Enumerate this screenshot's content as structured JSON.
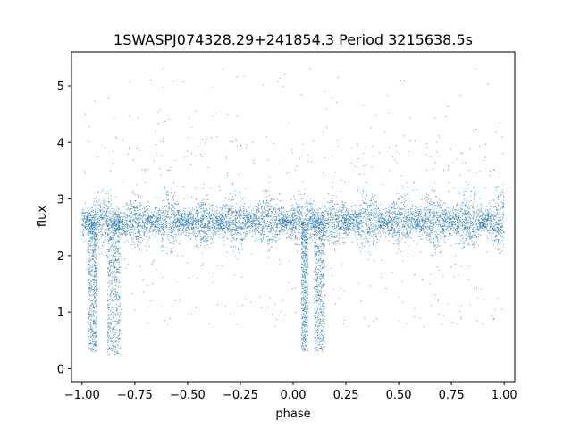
{
  "chart_data": {
    "type": "scatter",
    "title": "1SWASPJ074328.29+241854.3 Period 3215638.5s",
    "xlabel": "phase",
    "ylabel": "flux",
    "xlim": [
      -1.05,
      1.05
    ],
    "ylim": [
      -0.23,
      5.6
    ],
    "grid": false,
    "legend": "none",
    "x_ticks": [
      -1.0,
      -0.75,
      -0.5,
      -0.25,
      0.0,
      0.25,
      0.5,
      0.75,
      1.0
    ],
    "x_tick_labels": [
      "−1.00",
      "−0.75",
      "−0.50",
      "−0.25",
      "0.00",
      "0.25",
      "0.50",
      "0.75",
      "1.00"
    ],
    "y_ticks": [
      0,
      1,
      2,
      3,
      4,
      5
    ],
    "y_tick_labels": [
      "0",
      "1",
      "2",
      "3",
      "4",
      "5"
    ],
    "point_color": "#1f77b4",
    "series": [
      {
        "phase_range": [
          -1.0,
          1.0
        ],
        "typical_flux_band": [
          2.0,
          3.3
        ],
        "median_flux": 2.6,
        "max_flux": 5.35,
        "min_flux": 0.0,
        "dips": [
          {
            "phase_range": [
              -0.97,
              -0.93
            ],
            "flux_low": 0.3
          },
          {
            "phase_range": [
              -0.88,
              -0.82
            ],
            "flux_low": 0.25
          },
          {
            "phase_range": [
              0.04,
              0.07
            ],
            "flux_low": 0.3
          },
          {
            "phase_range": [
              0.1,
              0.15
            ],
            "flux_low": 0.3
          }
        ]
      }
    ]
  }
}
